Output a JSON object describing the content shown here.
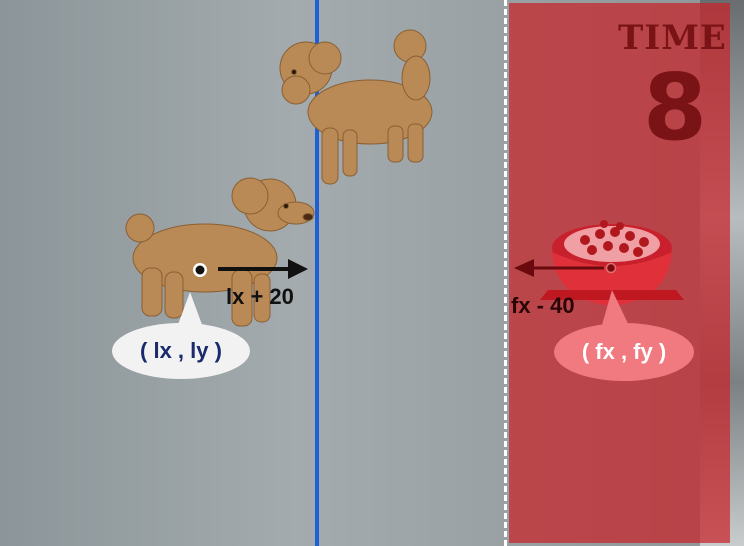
{
  "timer": {
    "title": "TIME",
    "value": "8"
  },
  "labels": {
    "dog_point": "( lx , ly )",
    "dog_offset": "lx + 20",
    "food_point": "( fx , fy )",
    "food_offset": "fx - 40"
  },
  "colors": {
    "boundary_line": "#1e5fd6",
    "food_zone": "#c82328",
    "dog_bubble_text": "#1a2a6c",
    "food_bubble_text": "#ffffff"
  }
}
